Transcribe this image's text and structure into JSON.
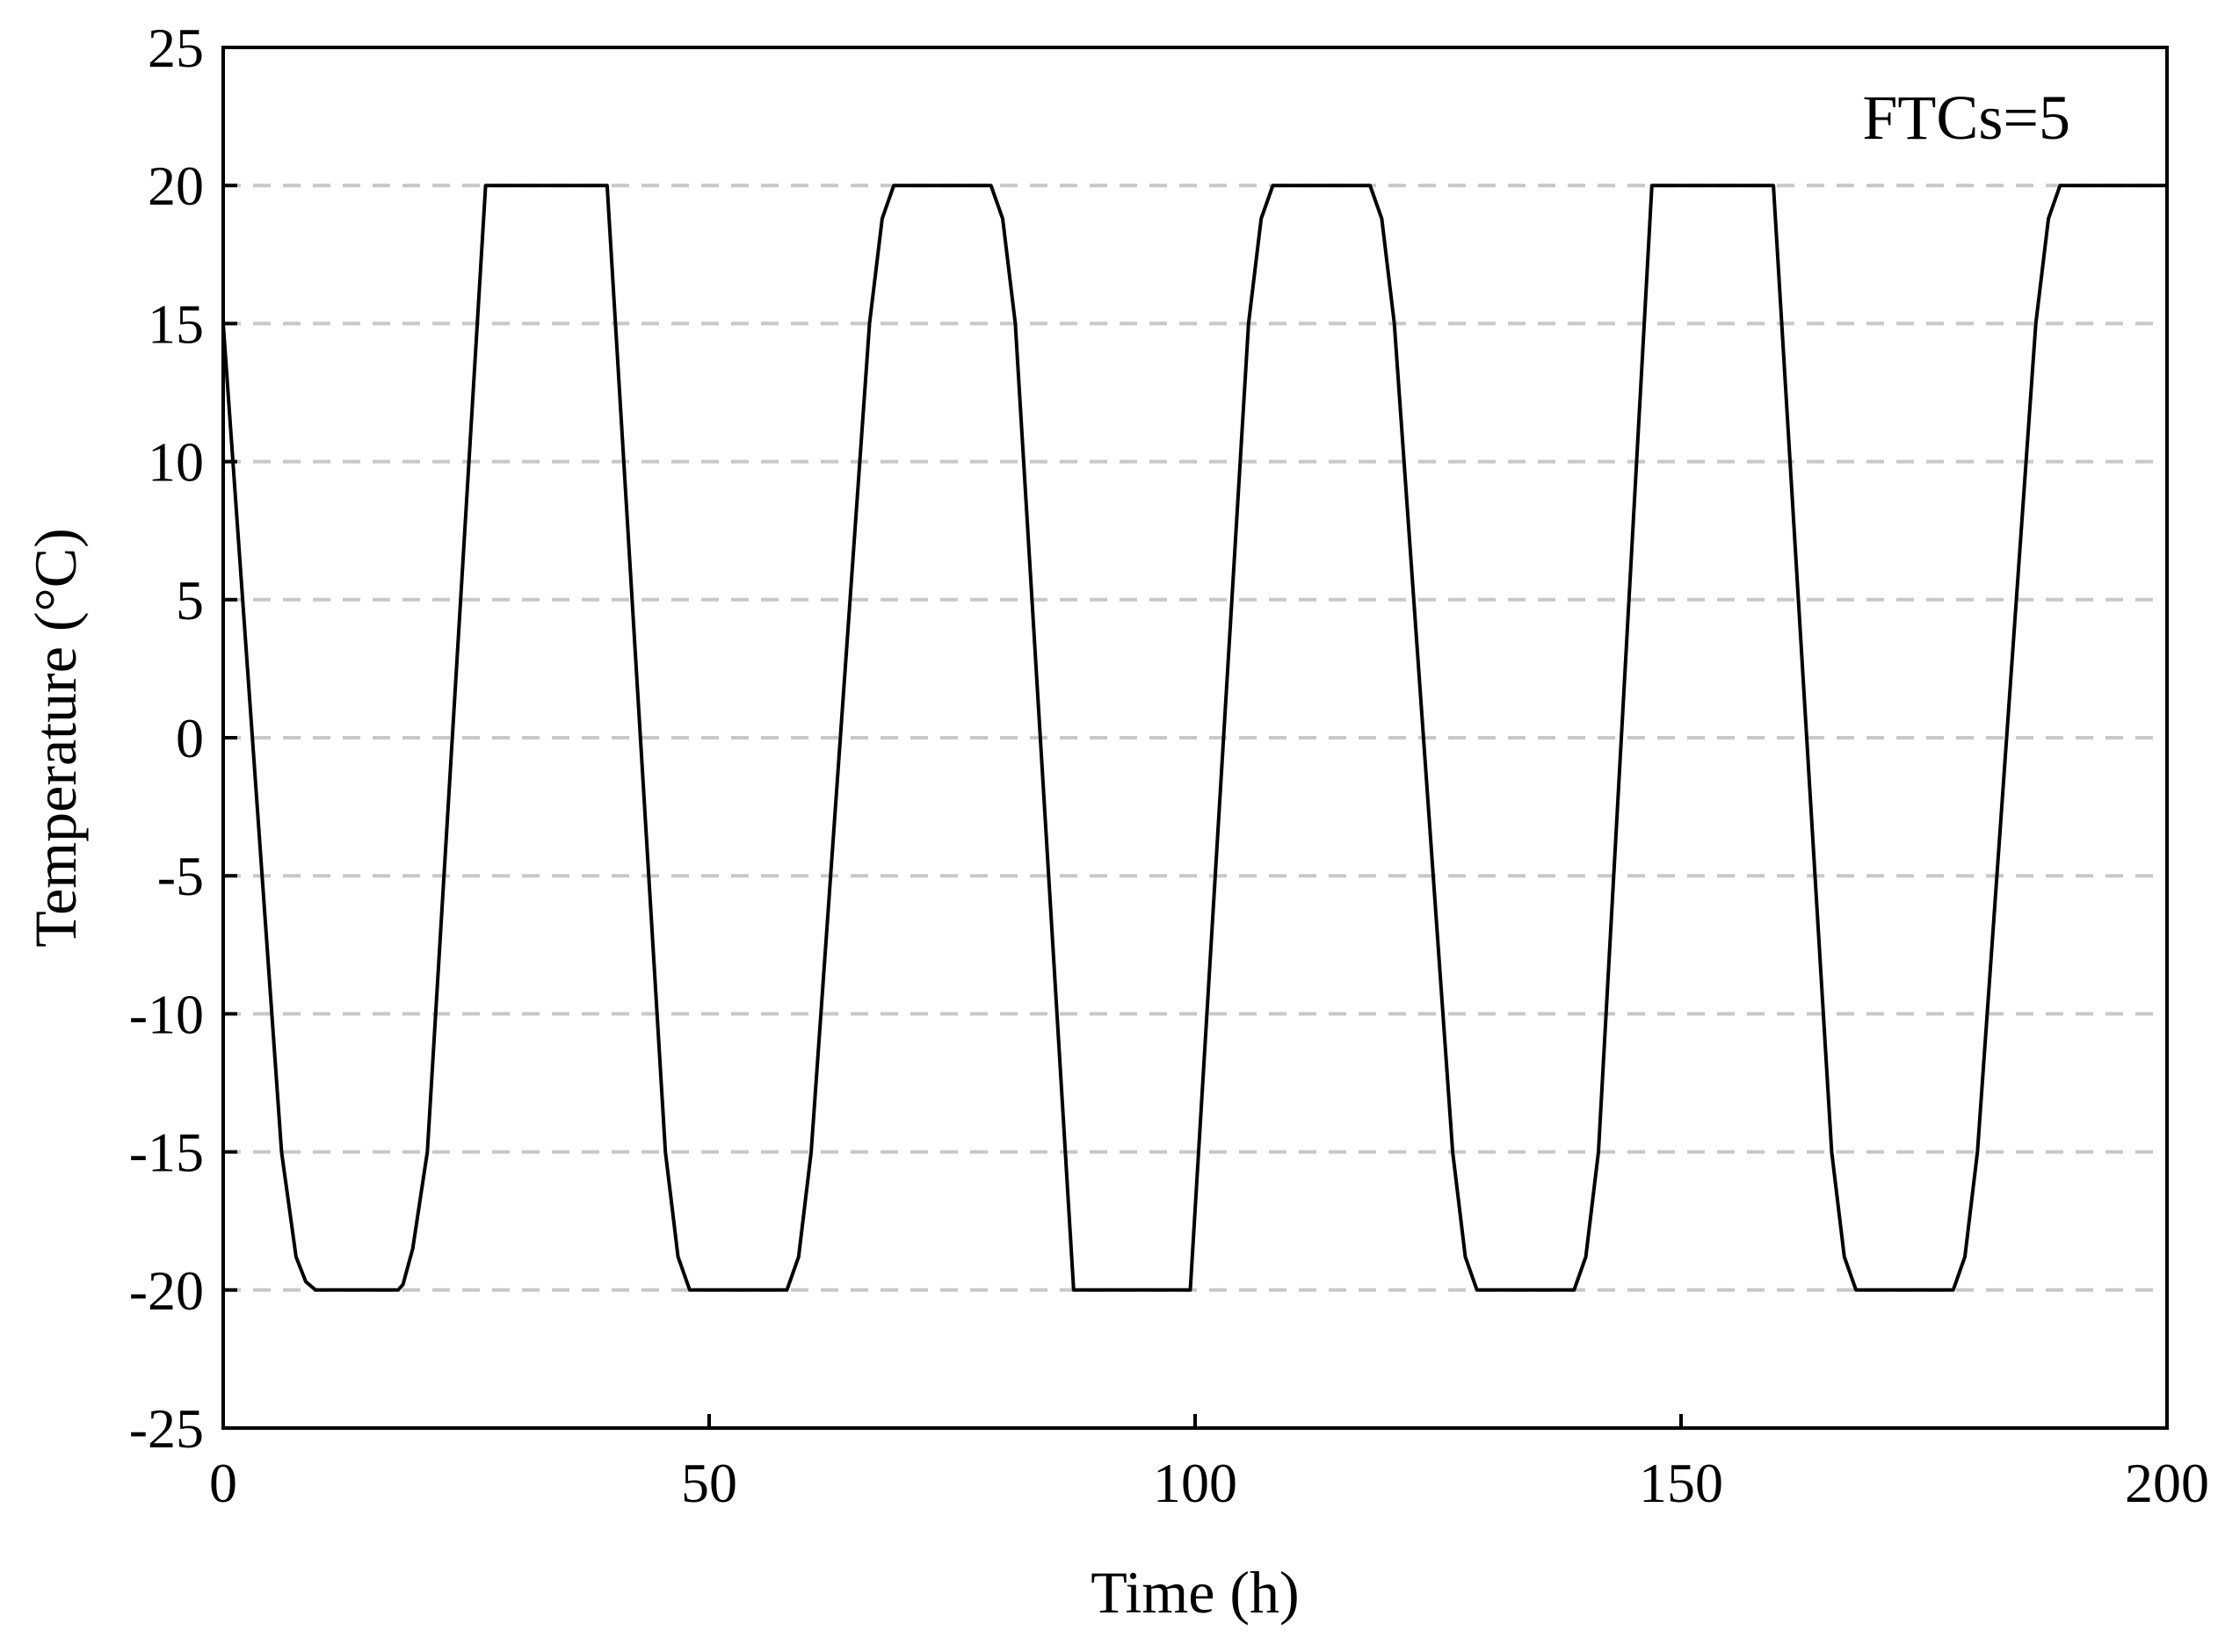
{
  "chart_data": {
    "type": "line",
    "title": "",
    "xlabel": "Time (h)",
    "ylabel": "Temperature (°C)",
    "xlim": [
      0,
      200
    ],
    "ylim": [
      -25,
      25
    ],
    "x_ticks": [
      0,
      50,
      100,
      150,
      200
    ],
    "x_tick_labels": [
      "0",
      "50",
      "100",
      "150",
      "200"
    ],
    "y_ticks": [
      25,
      20,
      15,
      10,
      5,
      0,
      -5,
      -10,
      -15,
      -20,
      -25
    ],
    "y_tick_labels": [
      "25",
      "20",
      "15",
      "10",
      "5",
      "0",
      "-5",
      "-10",
      "-15",
      "-20",
      "-25"
    ],
    "grid": "horizontal dashed",
    "annotation": "FTCs=5",
    "series": [
      {
        "x": [
          0,
          6,
          7.5,
          8.5,
          9.5,
          18,
          18.5,
          19.5,
          21,
          27,
          39.5,
          45.5,
          46.8,
          48,
          58,
          59.2,
          60.5,
          66.5,
          67.8,
          69,
          79,
          80.2,
          81.5,
          87.5,
          99.5,
          105.5,
          106.8,
          108,
          118,
          119.2,
          120.5,
          126.5,
          127.8,
          129,
          139,
          140.2,
          141.5,
          147,
          159.5,
          165.5,
          166.8,
          168,
          178,
          179.2,
          180.5,
          186.5,
          187.8,
          189,
          200
        ],
        "y": [
          15,
          -15,
          -18.8,
          -19.7,
          -20,
          -20,
          -19.8,
          -18.5,
          -15,
          20,
          20,
          -15,
          -18.8,
          -20,
          -20,
          -18.8,
          -15,
          15,
          18.8,
          20,
          20,
          18.8,
          15,
          -20,
          -20,
          15,
          18.8,
          20,
          20,
          18.8,
          15,
          -15,
          -18.8,
          -20,
          -20,
          -18.8,
          -15,
          20,
          20,
          -15,
          -18.8,
          -20,
          -20,
          -18.8,
          -15,
          15,
          18.8,
          20,
          20
        ],
        "color": "#000000"
      }
    ]
  }
}
